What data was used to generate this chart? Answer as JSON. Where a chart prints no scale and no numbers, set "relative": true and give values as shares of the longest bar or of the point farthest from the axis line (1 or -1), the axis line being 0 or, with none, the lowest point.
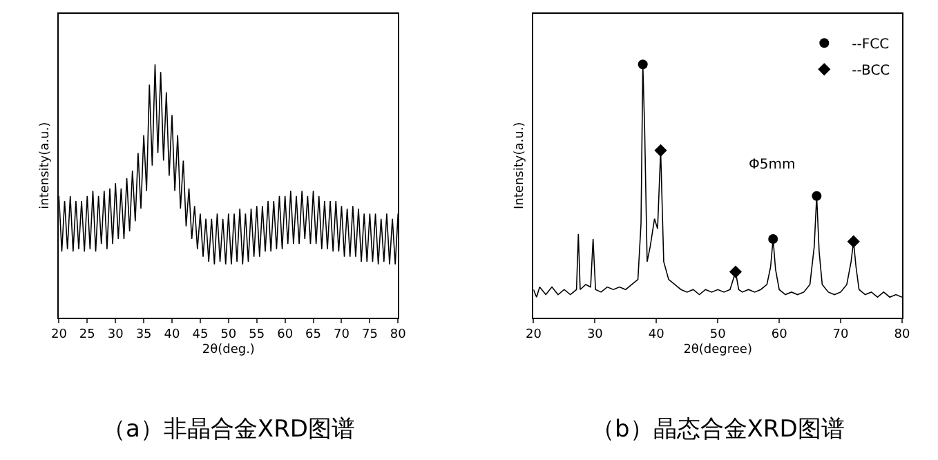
{
  "chart_data": [
    {
      "type": "line",
      "title": "（a）非晶合金XRD图谱",
      "xlabel": "2θ(deg.)",
      "ylabel": "intensity(a.u.)",
      "relative": true,
      "xlim": [
        20,
        80
      ],
      "xticks": [
        20,
        25,
        30,
        35,
        40,
        45,
        50,
        55,
        60,
        65,
        70,
        75,
        80
      ],
      "legend": false,
      "marker": "none",
      "line_style": "solid",
      "series": [
        {
          "color": "#000000",
          "x": [
            20,
            20.5,
            21,
            21.5,
            22,
            22.5,
            23,
            23.5,
            24,
            24.5,
            25,
            25.5,
            26,
            26.5,
            27,
            27.5,
            28,
            28.5,
            29,
            29.5,
            30,
            30.5,
            31,
            31.5,
            32,
            32.5,
            33,
            33.5,
            34,
            34.5,
            35,
            35.5,
            36,
            36.5,
            37,
            37.5,
            38,
            38.5,
            39,
            39.5,
            40,
            40.5,
            41,
            41.5,
            42,
            42.5,
            43,
            43.5,
            44,
            44.5,
            45,
            45.5,
            46,
            46.5,
            47,
            47.5,
            48,
            48.5,
            49,
            49.5,
            50,
            50.5,
            51,
            51.5,
            52,
            52.5,
            53,
            53.5,
            54,
            54.5,
            55,
            55.5,
            56,
            56.5,
            57,
            57.5,
            58,
            58.5,
            59,
            59.5,
            60,
            60.5,
            61,
            61.5,
            62,
            62.5,
            63,
            63.5,
            64,
            64.5,
            65,
            65.5,
            66,
            66.5,
            67,
            67.5,
            68,
            68.5,
            69,
            69.5,
            70,
            70.5,
            71,
            71.5,
            72,
            72.5,
            73,
            73.5,
            74,
            74.5,
            75,
            75.5,
            76,
            76.5,
            77,
            77.5,
            78,
            78.5,
            79,
            79.5,
            80
          ],
          "values": [
            0.48,
            0.26,
            0.46,
            0.27,
            0.48,
            0.26,
            0.46,
            0.27,
            0.46,
            0.26,
            0.48,
            0.27,
            0.5,
            0.26,
            0.48,
            0.29,
            0.5,
            0.27,
            0.51,
            0.29,
            0.53,
            0.31,
            0.51,
            0.31,
            0.55,
            0.34,
            0.58,
            0.38,
            0.65,
            0.43,
            0.72,
            0.5,
            0.92,
            0.6,
            1,
            0.65,
            0.97,
            0.62,
            0.89,
            0.56,
            0.8,
            0.5,
            0.72,
            0.43,
            0.62,
            0.36,
            0.51,
            0.31,
            0.44,
            0.27,
            0.41,
            0.24,
            0.39,
            0.22,
            0.39,
            0.21,
            0.41,
            0.22,
            0.39,
            0.21,
            0.41,
            0.21,
            0.41,
            0.22,
            0.43,
            0.21,
            0.41,
            0.22,
            0.43,
            0.24,
            0.44,
            0.24,
            0.44,
            0.26,
            0.46,
            0.26,
            0.46,
            0.27,
            0.48,
            0.27,
            0.48,
            0.29,
            0.5,
            0.29,
            0.48,
            0.29,
            0.5,
            0.31,
            0.48,
            0.29,
            0.5,
            0.29,
            0.48,
            0.27,
            0.46,
            0.27,
            0.46,
            0.26,
            0.46,
            0.26,
            0.44,
            0.24,
            0.43,
            0.24,
            0.44,
            0.24,
            0.43,
            0.22,
            0.41,
            0.22,
            0.41,
            0.22,
            0.41,
            0.21,
            0.39,
            0.22,
            0.41,
            0.21,
            0.39,
            0.21,
            0.41
          ]
        }
      ]
    },
    {
      "type": "line",
      "title": "（b）晶态合金XRD图谱",
      "xlabel": "2θ(degree)",
      "ylabel": "Intensity(a.u.)",
      "relative": true,
      "xlim": [
        20,
        80
      ],
      "xticks": [
        20,
        30,
        40,
        50,
        60,
        70,
        80
      ],
      "legend": "top right",
      "marker": "none",
      "line_style": "solid",
      "annotations": [
        "Φ5mm"
      ],
      "series": [
        {
          "color": "#000000",
          "x": [
            20,
            20.5,
            21,
            22,
            23,
            24,
            25,
            26,
            27,
            27.3,
            27.6,
            28.5,
            29.3,
            29.7,
            30.1,
            31,
            32,
            33,
            34,
            35,
            36,
            37,
            37.5,
            37.8,
            38.1,
            38.5,
            39,
            39.7,
            40.2,
            40.7,
            41.2,
            42,
            43,
            44,
            45,
            46,
            47,
            48,
            49,
            50,
            51,
            52,
            52.9,
            53.4,
            54,
            55,
            56,
            57,
            58,
            58.6,
            59,
            59.4,
            60,
            61,
            62,
            63,
            64,
            65,
            65.7,
            66.1,
            66.5,
            67,
            68,
            69,
            70,
            71,
            71.7,
            72.1,
            72.5,
            73,
            74,
            75,
            76,
            77,
            78,
            79,
            80
          ],
          "values": [
            0.11,
            0.08,
            0.12,
            0.09,
            0.12,
            0.09,
            0.11,
            0.09,
            0.11,
            0.33,
            0.11,
            0.13,
            0.12,
            0.31,
            0.11,
            0.1,
            0.12,
            0.11,
            0.12,
            0.11,
            0.13,
            0.15,
            0.37,
            1,
            0.74,
            0.22,
            0.28,
            0.39,
            0.35,
            0.66,
            0.22,
            0.15,
            0.13,
            0.11,
            0.1,
            0.11,
            0.09,
            0.11,
            0.1,
            0.11,
            0.1,
            0.11,
            0.18,
            0.11,
            0.1,
            0.11,
            0.1,
            0.11,
            0.13,
            0.2,
            0.31,
            0.19,
            0.11,
            0.09,
            0.1,
            0.09,
            0.1,
            0.13,
            0.28,
            0.48,
            0.26,
            0.13,
            0.1,
            0.09,
            0.1,
            0.13,
            0.22,
            0.3,
            0.2,
            0.11,
            0.09,
            0.1,
            0.08,
            0.1,
            0.08,
            0.09,
            0.08
          ]
        },
        {
          "type": "scatter",
          "name": "--FCC",
          "color": "#000000",
          "marker": "circle",
          "x": [
            37.8,
            59,
            66.1
          ],
          "values": [
            1,
            0.31,
            0.48
          ]
        },
        {
          "type": "scatter",
          "name": "--BCC",
          "color": "#000000",
          "marker": "diamond",
          "x": [
            40.7,
            52.9,
            72.1
          ],
          "values": [
            0.66,
            0.18,
            0.3
          ]
        }
      ]
    }
  ]
}
